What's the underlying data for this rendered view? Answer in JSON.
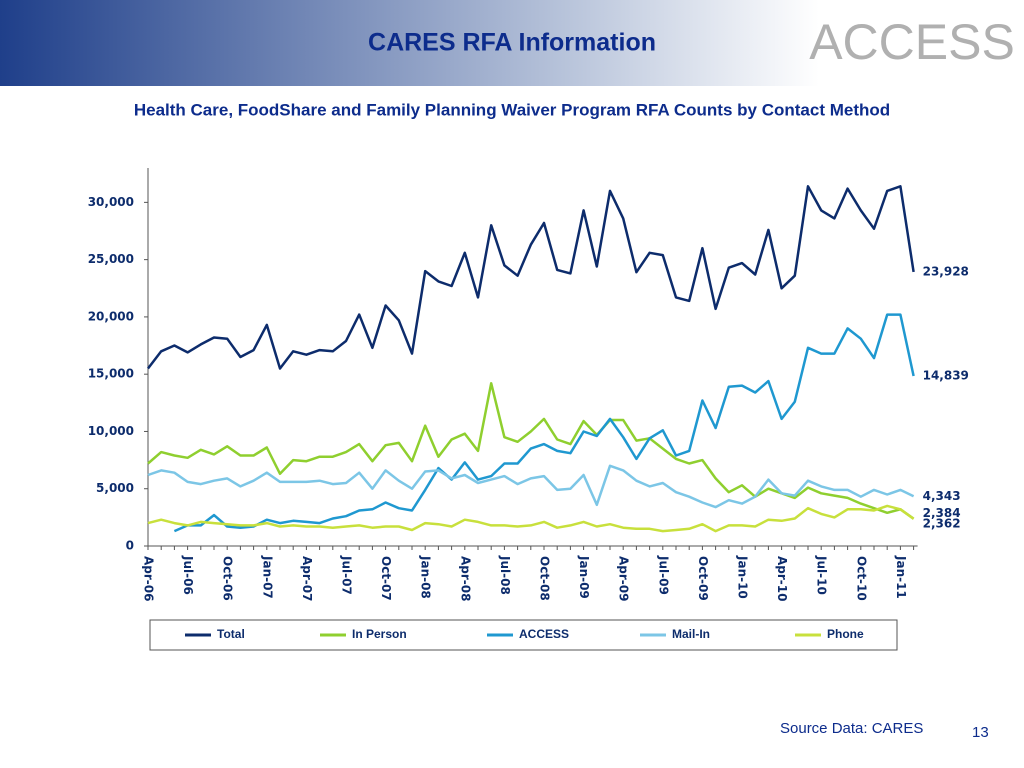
{
  "slide_title": "CARES RFA Information",
  "logo": "ACCESS",
  "source": "Source Data: CARES",
  "page_number": "13",
  "chart_data": {
    "type": "line",
    "title": "Health Care, FoodShare and Family Planning Waiver Program RFA Counts by Contact Method",
    "categories": [
      "Apr-06",
      null,
      null,
      "Jul-06",
      null,
      null,
      "Oct-06",
      null,
      null,
      "Jan-07",
      null,
      null,
      "Apr-07",
      null,
      null,
      "Jul-07",
      null,
      null,
      "Oct-07",
      null,
      null,
      "Jan-08",
      null,
      null,
      "Apr-08",
      null,
      null,
      "Jul-08",
      null,
      null,
      "Oct-08",
      null,
      null,
      "Jan-09",
      null,
      null,
      "Apr-09",
      null,
      null,
      "Jul-09",
      null,
      null,
      "Oct-09",
      null,
      null,
      "Jan-10",
      null,
      null,
      "Apr-10",
      null,
      null,
      "Jul-10",
      null,
      null,
      "Oct-10",
      null,
      null,
      "Jan-11",
      null
    ],
    "ylim": [
      0,
      33000
    ],
    "yticks": [
      0,
      {
        "value": 5000,
        "label": "5,000"
      },
      {
        "value": 10000,
        "label": "10,000"
      },
      {
        "value": 15000,
        "label": "15,000"
      },
      {
        "value": 20000,
        "label": "20,000"
      },
      {
        "value": 25000,
        "label": "25,000"
      },
      {
        "value": 30000,
        "label": "30,000"
      }
    ],
    "legend": "bottom",
    "series": [
      {
        "name": "Total",
        "color": "#0d2c6c",
        "values": [
          15500,
          17000,
          17500,
          16900,
          17600,
          18200,
          18100,
          16500,
          17100,
          19300,
          15500,
          17000,
          16700,
          17100,
          17000,
          17900,
          20200,
          17300,
          21000,
          19700,
          16800,
          24000,
          23100,
          22700,
          25600,
          21700,
          28000,
          24500,
          23600,
          26300,
          28200,
          24100,
          23800,
          29300,
          24400,
          31000,
          28600,
          23900,
          25600,
          25400,
          21700,
          21400,
          26000,
          20700,
          24300,
          24700,
          23700,
          27600,
          22500,
          23600,
          31400,
          29300,
          28600,
          31200,
          29300,
          27700,
          31000,
          31400,
          23928
        ],
        "value_labels": [
          null,
          null,
          null,
          null,
          null,
          null,
          null,
          null,
          null,
          null,
          null,
          null,
          null,
          null,
          null,
          null,
          null,
          null,
          null,
          null,
          null,
          null,
          null,
          null,
          null,
          null,
          null,
          null,
          null,
          null,
          null,
          null,
          null,
          null,
          null,
          null,
          null,
          null,
          null,
          null,
          null,
          null,
          null,
          null,
          null,
          null,
          null,
          null,
          null,
          null,
          null,
          null,
          null,
          null,
          null,
          null,
          null,
          null,
          "23,928"
        ]
      },
      {
        "name": "In Person",
        "color": "#8fcf2f",
        "values": [
          7200,
          8200,
          7900,
          7700,
          8400,
          8000,
          8700,
          7900,
          7900,
          8600,
          6300,
          7500,
          7400,
          7800,
          7800,
          8200,
          8900,
          7400,
          8800,
          9000,
          7400,
          10500,
          7800,
          9300,
          9800,
          8300,
          14200,
          9500,
          9100,
          10000,
          11100,
          9300,
          8900,
          10900,
          9700,
          11000,
          11000,
          9200,
          9400,
          8500,
          7600,
          7200,
          7500,
          5900,
          4700,
          5300,
          4300,
          5000,
          4600,
          4200,
          5100,
          4600,
          4400,
          4200,
          3700,
          3300,
          2900,
          3200,
          2384
        ],
        "value_labels": [
          null,
          null,
          null,
          null,
          null,
          null,
          null,
          null,
          null,
          null,
          null,
          null,
          null,
          null,
          null,
          null,
          null,
          null,
          null,
          null,
          null,
          null,
          null,
          null,
          null,
          null,
          null,
          null,
          null,
          null,
          null,
          null,
          null,
          null,
          null,
          null,
          null,
          null,
          null,
          null,
          null,
          null,
          null,
          null,
          null,
          null,
          null,
          null,
          null,
          null,
          null,
          null,
          null,
          null,
          null,
          null,
          null,
          null,
          "2,384"
        ]
      },
      {
        "name": "ACCESS",
        "color": "#1f98d0",
        "values": [
          null,
          null,
          1300,
          1800,
          1800,
          2700,
          1700,
          1600,
          1700,
          2300,
          2000,
          2200,
          2100,
          2000,
          2400,
          2600,
          3100,
          3200,
          3800,
          3300,
          3100,
          4900,
          6800,
          5800,
          7300,
          5800,
          6100,
          7200,
          7200,
          8500,
          8900,
          8300,
          8100,
          10000,
          9600,
          11100,
          9500,
          7600,
          9400,
          10100,
          7900,
          8300,
          12700,
          10300,
          13900,
          14000,
          13400,
          14400,
          11100,
          12600,
          17300,
          16800,
          16800,
          19000,
          18100,
          16400,
          20200,
          20200,
          14839
        ],
        "value_labels": [
          null,
          null,
          null,
          null,
          null,
          null,
          null,
          null,
          null,
          null,
          null,
          null,
          null,
          null,
          null,
          null,
          null,
          null,
          null,
          null,
          null,
          null,
          null,
          null,
          null,
          null,
          null,
          null,
          null,
          null,
          null,
          null,
          null,
          null,
          null,
          null,
          null,
          null,
          null,
          null,
          null,
          null,
          null,
          null,
          null,
          null,
          null,
          null,
          null,
          null,
          null,
          null,
          null,
          null,
          null,
          null,
          null,
          null,
          "14,839"
        ]
      },
      {
        "name": "Mail-In",
        "color": "#7cc6e6",
        "values": [
          6200,
          6600,
          6400,
          5600,
          5400,
          5700,
          5900,
          5200,
          5700,
          6400,
          5600,
          5600,
          5600,
          5700,
          5400,
          5500,
          6400,
          5000,
          6600,
          5700,
          5000,
          6500,
          6600,
          5900,
          6200,
          5500,
          5800,
          6100,
          5400,
          5900,
          6100,
          4900,
          5000,
          6200,
          3600,
          7000,
          6600,
          5700,
          5200,
          5500,
          4700,
          4300,
          3800,
          3400,
          4000,
          3700,
          4300,
          5800,
          4600,
          4400,
          5700,
          5200,
          4900,
          4900,
          4300,
          4900,
          4500,
          4900,
          4343
        ],
        "value_labels": [
          null,
          null,
          null,
          null,
          null,
          null,
          null,
          null,
          null,
          null,
          null,
          null,
          null,
          null,
          null,
          null,
          null,
          null,
          null,
          null,
          null,
          null,
          null,
          null,
          null,
          null,
          null,
          null,
          null,
          null,
          null,
          null,
          null,
          null,
          null,
          null,
          null,
          null,
          null,
          null,
          null,
          null,
          null,
          null,
          null,
          null,
          null,
          null,
          null,
          null,
          null,
          null,
          null,
          null,
          null,
          null,
          null,
          null,
          "4,343"
        ]
      },
      {
        "name": "Phone",
        "color": "#c8e03c",
        "values": [
          2000,
          2300,
          2000,
          1800,
          2100,
          2000,
          1900,
          1800,
          1800,
          2000,
          1700,
          1800,
          1700,
          1700,
          1600,
          1700,
          1800,
          1600,
          1700,
          1700,
          1400,
          2000,
          1900,
          1700,
          2300,
          2100,
          1800,
          1800,
          1700,
          1800,
          2100,
          1600,
          1800,
          2100,
          1700,
          1900,
          1600,
          1500,
          1500,
          1300,
          1400,
          1500,
          1900,
          1300,
          1800,
          1800,
          1700,
          2300,
          2200,
          2400,
          3300,
          2800,
          2500,
          3200,
          3200,
          3100,
          3500,
          3200,
          2362
        ],
        "value_labels": [
          null,
          null,
          null,
          null,
          null,
          null,
          null,
          null,
          null,
          null,
          null,
          null,
          null,
          null,
          null,
          null,
          null,
          null,
          null,
          null,
          null,
          null,
          null,
          null,
          null,
          null,
          null,
          null,
          null,
          null,
          null,
          null,
          null,
          null,
          null,
          null,
          null,
          null,
          null,
          null,
          null,
          null,
          null,
          null,
          null,
          null,
          null,
          null,
          null,
          null,
          null,
          null,
          null,
          null,
          null,
          null,
          null,
          null,
          "2,362"
        ]
      }
    ]
  }
}
